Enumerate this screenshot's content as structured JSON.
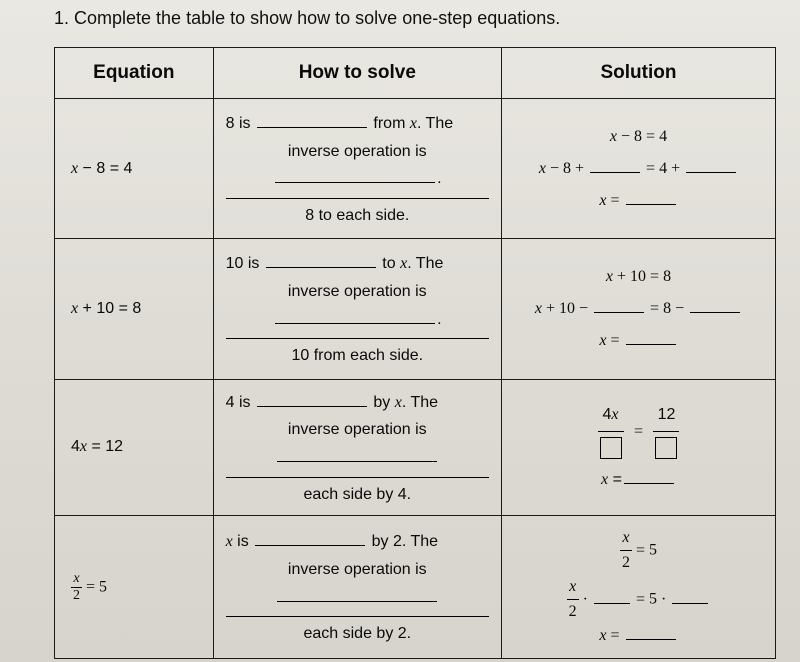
{
  "prompt": "1. Complete the table to show how to solve one-step equations.",
  "headers": {
    "col1": "Equation",
    "col2": "How to solve",
    "col3": "Solution"
  },
  "rows": [
    {
      "eq_html": "<span class='mi'>x</span> − 8 = 4",
      "how_pre": "8 is ",
      "how_post1": " from ",
      "how_var": "x",
      "how_post2": ". The",
      "how_line2": "inverse operation is",
      "how_tail": "8 to each side.",
      "sol_line1": "<span class='mi'>x</span><span class='op'>−</span><span class='mn'>8</span><span class='op'>=</span><span class='mn'>4</span>",
      "sol_line2_pre": "<span class='mi'>x</span><span class='op'>−</span><span class='mn'>8</span><span class='op'>+</span>",
      "sol_line2_mid": "<span class='op'>=</span><span class='mn'>4</span><span class='op'>+</span>",
      "sol_line3_pre": "<span class='mi'>x</span><span class='op'>=</span>"
    },
    {
      "eq_html": "<span class='mi'>x</span> + 10 = 8",
      "how_pre": "10 is ",
      "how_post1": " to ",
      "how_var": "x",
      "how_post2": ". The",
      "how_line2": "inverse operation is",
      "how_tail": "10 from each side.",
      "sol_line1": "<span class='mi'>x</span><span class='op'>+</span><span class='mn'>10</span><span class='op'>=</span><span class='mn'>8</span>",
      "sol_line2_pre": "<span class='mi'>x</span><span class='op'>+</span><span class='mn'>10</span><span class='op'>−</span>",
      "sol_line2_mid": "<span class='op'>=</span><span class='mn'>8</span><span class='op'>−</span>",
      "sol_line3_pre": "<span class='mi'>x</span><span class='op'>=</span>"
    },
    {
      "eq_html": "4<span class='mi'>x</span> = 12",
      "how_pre": "4 is ",
      "how_post1": " by ",
      "how_var": "x",
      "how_post2": ". The",
      "how_line2": "inverse operation is",
      "how_tail": "each side by 4.",
      "sol_frac_numL": "4<span class='mi'>x</span>",
      "sol_frac_numR": "12",
      "sol_line3_pre": "<span class='mi'>x</span> ="
    },
    {
      "eq_frac_num": "x",
      "eq_frac_den": "2",
      "eq_rhs": " = 5",
      "how_pre_html": "<span class='mi'>x</span> is ",
      "how_post1": " by 2. The",
      "how_line2": "inverse operation is",
      "how_tail": "each side by 2.",
      "sol_l1_frac_num": "x",
      "sol_l1_frac_den": "2",
      "sol_l1_rhs": "<span class='op'>=</span><span class='mn'>5</span>",
      "sol_l2_frac_num": "x",
      "sol_l2_frac_den": "2",
      "sol_l2_mid": "<span class='op'>·</span>",
      "sol_l2_rhs": "<span class='op'>=</span><span class='mn'>5</span><span class='op'>·</span>",
      "sol_line3_pre": "<span class='mi'>x</span><span class='op'>=</span>"
    }
  ]
}
